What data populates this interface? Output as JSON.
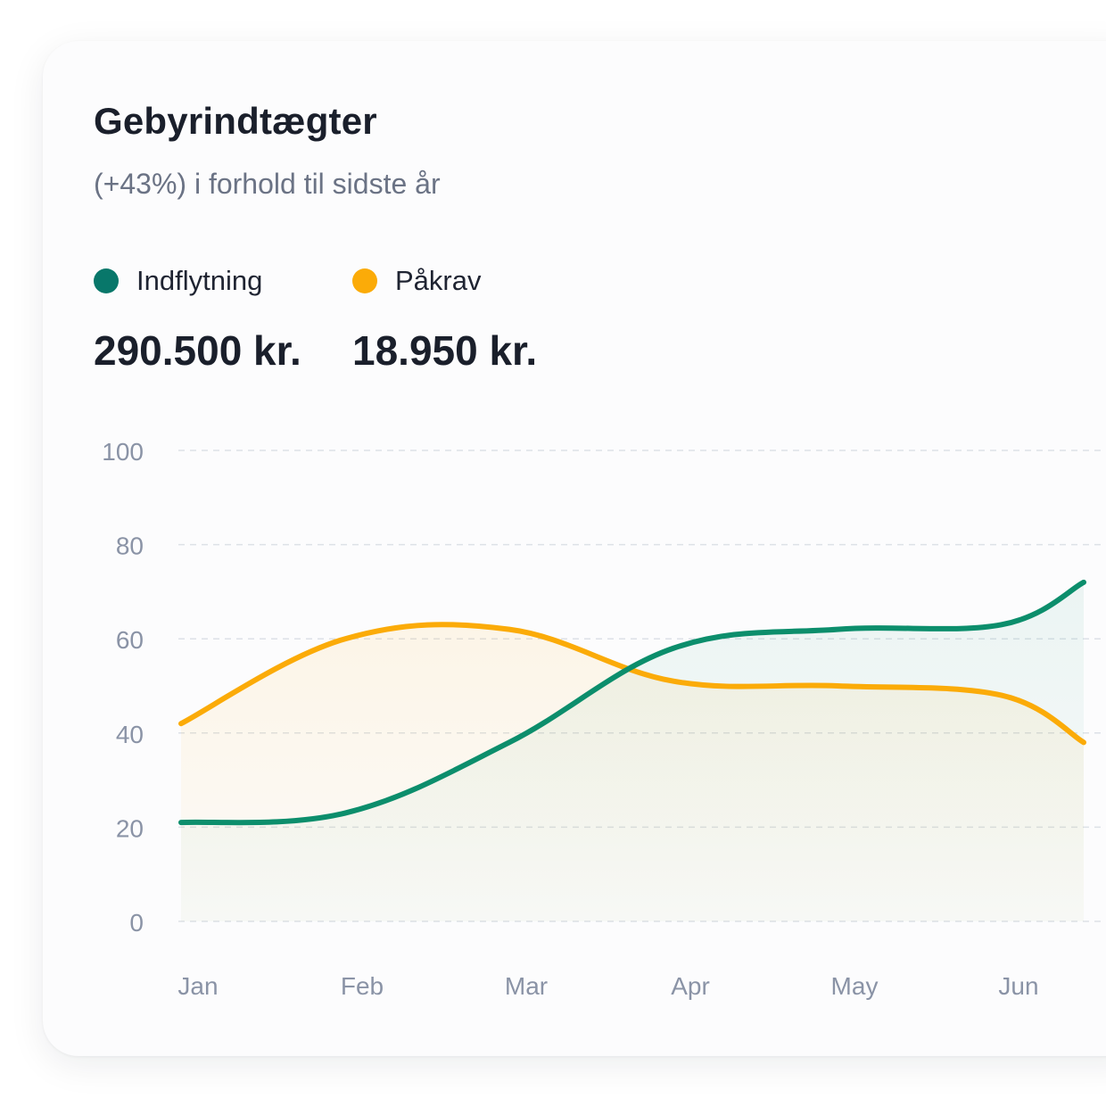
{
  "card": {
    "title": "Gebyrindtægter",
    "subtitle": "(+43%) i forhold til sidste år"
  },
  "legend": [
    {
      "name": "Indflytning",
      "color": "#08776a",
      "total": "290.500 kr."
    },
    {
      "name": "Påkrav",
      "color": "#fbab08",
      "total": "18.950 kr."
    }
  ],
  "chart_data": {
    "type": "area",
    "categories": [
      "Jan",
      "Feb",
      "Mar",
      "Apr",
      "May",
      "Jun"
    ],
    "x": [
      0,
      1,
      2,
      3,
      4,
      5,
      5.5
    ],
    "yticks": [
      0,
      20,
      40,
      60,
      80,
      100
    ],
    "ylim": [
      0,
      100
    ],
    "grid": true,
    "series": [
      {
        "name": "Indflytning",
        "color": "#0c8e6c",
        "values": [
          21,
          23,
          38,
          58,
          62,
          63,
          72
        ]
      },
      {
        "name": "Påkrav",
        "color": "#fbab08",
        "values": [
          42,
          60,
          62,
          51,
          50,
          48,
          38
        ]
      }
    ]
  }
}
